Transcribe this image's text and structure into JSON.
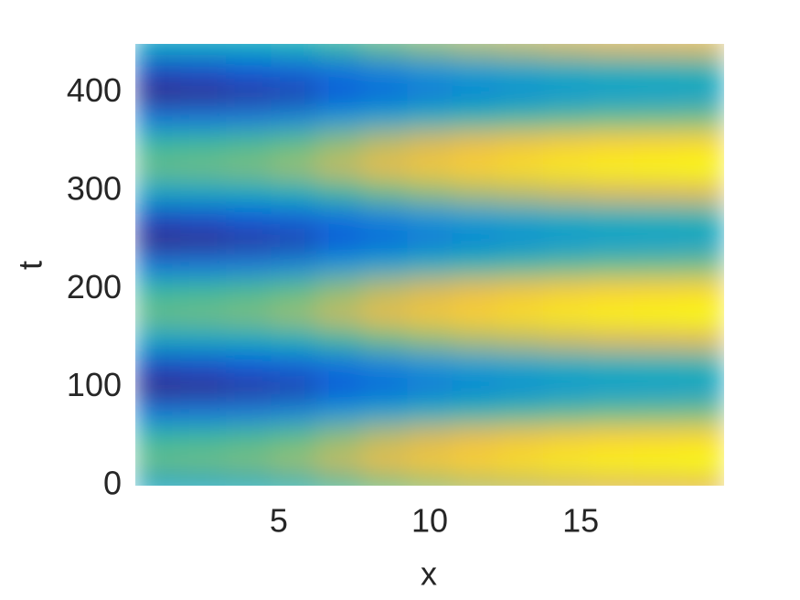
{
  "chart_data": {
    "type": "heatmap",
    "xlabel": "x",
    "ylabel": "t",
    "x": [
      1,
      2.5,
      4,
      5.5,
      7,
      8.5,
      10,
      11.5,
      13,
      14.5,
      16,
      17.5,
      19
    ],
    "y": [
      0,
      25,
      50,
      75,
      100,
      125,
      150,
      175,
      200,
      225,
      250,
      275,
      300,
      325,
      350,
      375,
      400,
      425,
      450
    ],
    "values": [
      [
        0.37,
        0.38,
        0.4,
        0.43,
        0.49,
        0.56,
        0.61,
        0.65,
        0.68,
        0.71,
        0.73,
        0.74,
        0.75
      ],
      [
        0.55,
        0.56,
        0.58,
        0.62,
        0.69,
        0.76,
        0.81,
        0.85,
        0.88,
        0.91,
        0.93,
        0.94,
        0.95
      ],
      [
        0.47,
        0.48,
        0.5,
        0.53,
        0.6,
        0.67,
        0.72,
        0.76,
        0.79,
        0.82,
        0.84,
        0.85,
        0.86
      ],
      [
        0.19,
        0.2,
        0.22,
        0.25,
        0.31,
        0.36,
        0.41,
        0.45,
        0.48,
        0.51,
        0.53,
        0.54,
        0.55
      ],
      [
        0.01,
        0.02,
        0.04,
        0.06,
        0.11,
        0.16,
        0.21,
        0.25,
        0.28,
        0.31,
        0.33,
        0.34,
        0.35
      ],
      [
        0.09,
        0.1,
        0.12,
        0.15,
        0.2,
        0.25,
        0.3,
        0.34,
        0.37,
        0.4,
        0.42,
        0.43,
        0.44
      ],
      [
        0.37,
        0.38,
        0.4,
        0.43,
        0.49,
        0.56,
        0.61,
        0.65,
        0.68,
        0.71,
        0.73,
        0.74,
        0.75
      ],
      [
        0.55,
        0.56,
        0.58,
        0.62,
        0.69,
        0.76,
        0.81,
        0.85,
        0.88,
        0.91,
        0.93,
        0.94,
        0.95
      ],
      [
        0.47,
        0.48,
        0.5,
        0.53,
        0.6,
        0.67,
        0.72,
        0.76,
        0.79,
        0.82,
        0.84,
        0.85,
        0.86
      ],
      [
        0.19,
        0.2,
        0.22,
        0.25,
        0.31,
        0.36,
        0.41,
        0.45,
        0.48,
        0.51,
        0.53,
        0.54,
        0.55
      ],
      [
        0.01,
        0.02,
        0.04,
        0.06,
        0.11,
        0.16,
        0.21,
        0.25,
        0.28,
        0.31,
        0.33,
        0.34,
        0.35
      ],
      [
        0.09,
        0.1,
        0.12,
        0.15,
        0.2,
        0.25,
        0.3,
        0.34,
        0.37,
        0.4,
        0.42,
        0.43,
        0.44
      ],
      [
        0.37,
        0.38,
        0.4,
        0.43,
        0.49,
        0.56,
        0.61,
        0.65,
        0.68,
        0.71,
        0.73,
        0.74,
        0.75
      ],
      [
        0.55,
        0.56,
        0.58,
        0.62,
        0.69,
        0.76,
        0.81,
        0.85,
        0.88,
        0.91,
        0.93,
        0.94,
        0.95
      ],
      [
        0.47,
        0.48,
        0.5,
        0.53,
        0.6,
        0.67,
        0.72,
        0.76,
        0.79,
        0.82,
        0.84,
        0.85,
        0.86
      ],
      [
        0.19,
        0.2,
        0.22,
        0.25,
        0.31,
        0.36,
        0.41,
        0.45,
        0.48,
        0.51,
        0.53,
        0.54,
        0.55
      ],
      [
        0.01,
        0.02,
        0.04,
        0.06,
        0.11,
        0.16,
        0.21,
        0.25,
        0.28,
        0.31,
        0.33,
        0.34,
        0.35
      ],
      [
        0.09,
        0.1,
        0.12,
        0.15,
        0.2,
        0.25,
        0.3,
        0.34,
        0.37,
        0.4,
        0.42,
        0.43,
        0.44
      ],
      [
        0.37,
        0.38,
        0.4,
        0.43,
        0.49,
        0.56,
        0.61,
        0.65,
        0.68,
        0.71,
        0.73,
        0.74,
        0.75
      ]
    ],
    "colormap": "parula",
    "xlim": [
      0.25,
      19.75
    ],
    "xticks": [
      5,
      10,
      15
    ],
    "ylim": [
      0,
      450
    ],
    "yticks": [
      0,
      100,
      200,
      300,
      400
    ],
    "grid": false
  }
}
